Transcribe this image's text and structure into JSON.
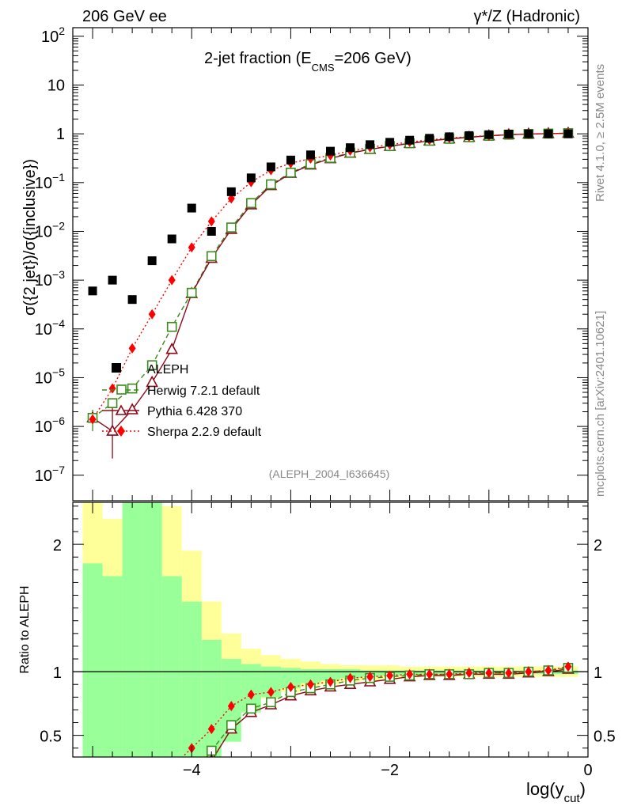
{
  "header": {
    "left": "206 GeV ee",
    "right": "γ*/Z (Hadronic)"
  },
  "side_labels": {
    "rivet": "Rivet 4.1.0, ≥ 2.5M events",
    "mcplots": "mcplots.cern.ch [arXiv:2401.10621]"
  },
  "colors": {
    "data": "#000000",
    "herwig": "#3a8a1c",
    "pythia": "#8b0a1a",
    "sherpa": "#ff0000",
    "band_stat": "#99ff99",
    "band_syst": "#ffff99"
  },
  "chart_data": [
    {
      "type": "scatter",
      "title_main": "2-jet fraction (E",
      "title_sub": "CMS",
      "title_tail": "=206 GeV)",
      "analysis_tag": "(ALEPH_2004_I636645)",
      "ylabel": "σ({2 jet})/σ({inclusive})",
      "yscale": "log",
      "ylim": [
        3e-08,
        150
      ],
      "xlim": [
        -5.2,
        0
      ],
      "yticks": [
        {
          "v": 1e-07,
          "base": "10",
          "exp": "−7"
        },
        {
          "v": 1e-06,
          "base": "10",
          "exp": "−6"
        },
        {
          "v": 1e-05,
          "base": "10",
          "exp": "−5"
        },
        {
          "v": 0.0001,
          "base": "10",
          "exp": "−4"
        },
        {
          "v": 0.001,
          "base": "10",
          "exp": "−3"
        },
        {
          "v": 0.01,
          "base": "10",
          "exp": "−2"
        },
        {
          "v": 0.1,
          "base": "10",
          "exp": "−1"
        },
        {
          "v": 1,
          "base": "1",
          "exp": ""
        },
        {
          "v": 10,
          "base": "10",
          "exp": ""
        },
        {
          "v": 100,
          "base": "10",
          "exp": "2"
        }
      ],
      "x": [
        -5.0,
        -4.8,
        -4.6,
        -4.4,
        -4.2,
        -4.0,
        -3.8,
        -3.6,
        -3.4,
        -3.2,
        -3.0,
        -2.8,
        -2.6,
        -2.4,
        -2.2,
        -2.0,
        -1.8,
        -1.6,
        -1.4,
        -1.2,
        -1.0,
        -0.8,
        -0.6,
        -0.4,
        -0.2
      ],
      "series": [
        {
          "name": "ALEPH",
          "key": "data",
          "values": [
            0.0006,
            0.001,
            0.0004,
            0.0025,
            0.007,
            0.03,
            0.01,
            0.065,
            0.125,
            0.21,
            0.29,
            0.37,
            0.44,
            0.52,
            0.6,
            0.67,
            0.74,
            0.81,
            0.87,
            0.92,
            0.96,
            0.99,
            1.0,
            1.0,
            1.0
          ]
        },
        {
          "name": "Herwig 7.2.1 default",
          "key": "herwig",
          "values": [
            1.5e-06,
            3e-06,
            6e-06,
            1.8e-05,
            0.00011,
            0.00055,
            0.0031,
            0.012,
            0.038,
            0.092,
            0.16,
            0.24,
            0.32,
            0.41,
            0.49,
            0.56,
            0.64,
            0.72,
            0.79,
            0.85,
            0.91,
            0.96,
            0.99,
            1.01,
            1.03
          ]
        },
        {
          "name": "Pythia 6.428 370",
          "key": "pythia",
          "values": [
            1.5e-06,
            8e-07,
            2.2e-06,
            8e-06,
            3.8e-05,
            0.00053,
            0.0028,
            0.011,
            0.035,
            0.087,
            0.155,
            0.23,
            0.31,
            0.4,
            0.48,
            0.555,
            0.635,
            0.715,
            0.79,
            0.85,
            0.91,
            0.96,
            0.99,
            1.01,
            1.03
          ]
        },
        {
          "name": "Sherpa 2.2.9 default",
          "key": "sherpa",
          "values": [
            1.4e-06,
            6e-06,
            4e-05,
            0.0002,
            0.001,
            0.0047,
            0.016,
            0.047,
            0.102,
            0.18,
            0.25,
            0.31,
            0.36,
            0.45,
            0.53,
            0.6,
            0.68,
            0.75,
            0.82,
            0.87,
            0.92,
            0.96,
            0.99,
            1.01,
            1.03
          ]
        }
      ]
    },
    {
      "type": "line",
      "ylabel": "Ratio to ALEPH",
      "xlabel_main": "log(y",
      "xlabel_sub": "cut",
      "xlabel_tail": ")",
      "ylim": [
        0.33,
        2.33
      ],
      "xlim": [
        -5.2,
        0
      ],
      "yticks": [
        0.5,
        1,
        2
      ],
      "xticks": [
        {
          "v": -4,
          "label": "−4"
        },
        {
          "v": -2,
          "label": "−2"
        },
        {
          "v": 0,
          "label": "0"
        }
      ],
      "bands": {
        "edges": [
          -5.1,
          -4.9,
          -4.7,
          -4.5,
          -4.3,
          -4.1,
          -3.9,
          -3.7,
          -3.5,
          -3.3,
          -3.1,
          -2.9,
          -2.7,
          -2.5,
          -2.3,
          -2.1,
          -1.9,
          -1.7,
          -1.5,
          -1.3,
          -1.1,
          -0.9,
          -0.7,
          -0.5,
          -0.3,
          -0.1
        ],
        "syst_lo": [
          0.0,
          0.0,
          0.3,
          0.0,
          0.0,
          0.3,
          0.45,
          0.62,
          0.72,
          0.79,
          0.84,
          0.88,
          0.9,
          0.92,
          0.93,
          0.94,
          0.95,
          0.96,
          0.96,
          0.96,
          0.96,
          0.96,
          0.96,
          0.96,
          0.96
        ],
        "syst_hi": [
          2.5,
          2.2,
          2.5,
          2.5,
          2.3,
          1.95,
          1.55,
          1.3,
          1.18,
          1.13,
          1.1,
          1.08,
          1.06,
          1.05,
          1.05,
          1.05,
          1.04,
          1.04,
          1.04,
          1.04,
          1.04,
          1.04,
          1.04,
          1.04,
          1.04
        ],
        "stat_lo": [
          0.0,
          0.0,
          0.0,
          0.0,
          0.0,
          0.0,
          0.0,
          0.45,
          0.68,
          0.8,
          0.87,
          0.91,
          0.93,
          0.95,
          0.96,
          0.97,
          0.97,
          0.98,
          0.98,
          0.98,
          0.98,
          0.98,
          0.98,
          0.98,
          0.98
        ],
        "stat_hi": [
          1.85,
          1.75,
          2.5,
          2.5,
          1.75,
          1.55,
          1.25,
          1.1,
          1.06,
          1.04,
          1.03,
          1.02,
          1.02,
          1.02,
          1.01,
          1.01,
          1.01,
          1.01,
          1.01,
          1.01,
          1.01,
          1.01,
          1.01,
          1.01,
          1.01
        ]
      },
      "series": [
        {
          "name": "Herwig 7.2.1 default",
          "key": "herwig",
          "x": [
            -3.8,
            -3.6,
            -3.4,
            -3.2,
            -3.0,
            -2.8,
            -2.6,
            -2.4,
            -2.2,
            -2.0,
            -1.8,
            -1.6,
            -1.4,
            -1.2,
            -1.0,
            -0.8,
            -0.6,
            -0.4,
            -0.2
          ],
          "values": [
            0.38,
            0.58,
            0.71,
            0.76,
            0.84,
            0.87,
            0.9,
            0.93,
            0.95,
            0.96,
            0.97,
            0.98,
            0.98,
            0.98,
            0.99,
            0.99,
            1.0,
            1.01,
            1.03
          ]
        },
        {
          "name": "Pythia 6.428 370",
          "key": "pythia",
          "x": [
            -3.8,
            -3.6,
            -3.4,
            -3.2,
            -3.0,
            -2.8,
            -2.6,
            -2.4,
            -2.2,
            -2.0,
            -1.8,
            -1.6,
            -1.4,
            -1.2,
            -1.0,
            -0.8,
            -0.6,
            -0.4,
            -0.2
          ],
          "values": [
            0.3,
            0.55,
            0.68,
            0.74,
            0.81,
            0.85,
            0.88,
            0.9,
            0.92,
            0.94,
            0.96,
            0.97,
            0.97,
            0.98,
            0.98,
            0.98,
            0.99,
            1.0,
            1.02
          ]
        },
        {
          "name": "Sherpa 2.2.9 default",
          "key": "sherpa",
          "x": [
            -4.0,
            -3.8,
            -3.6,
            -3.4,
            -3.2,
            -3.0,
            -2.8,
            -2.6,
            -2.4,
            -2.2,
            -2.0,
            -1.8,
            -1.6,
            -1.4,
            -1.2,
            -1.0,
            -0.8,
            -0.6,
            -0.4,
            -0.2
          ],
          "values": [
            0.4,
            0.55,
            0.73,
            0.82,
            0.84,
            0.88,
            0.9,
            0.92,
            0.95,
            0.96,
            0.97,
            0.98,
            0.98,
            0.98,
            0.99,
            0.99,
            0.99,
            1.0,
            1.01,
            1.04
          ]
        }
      ]
    }
  ]
}
